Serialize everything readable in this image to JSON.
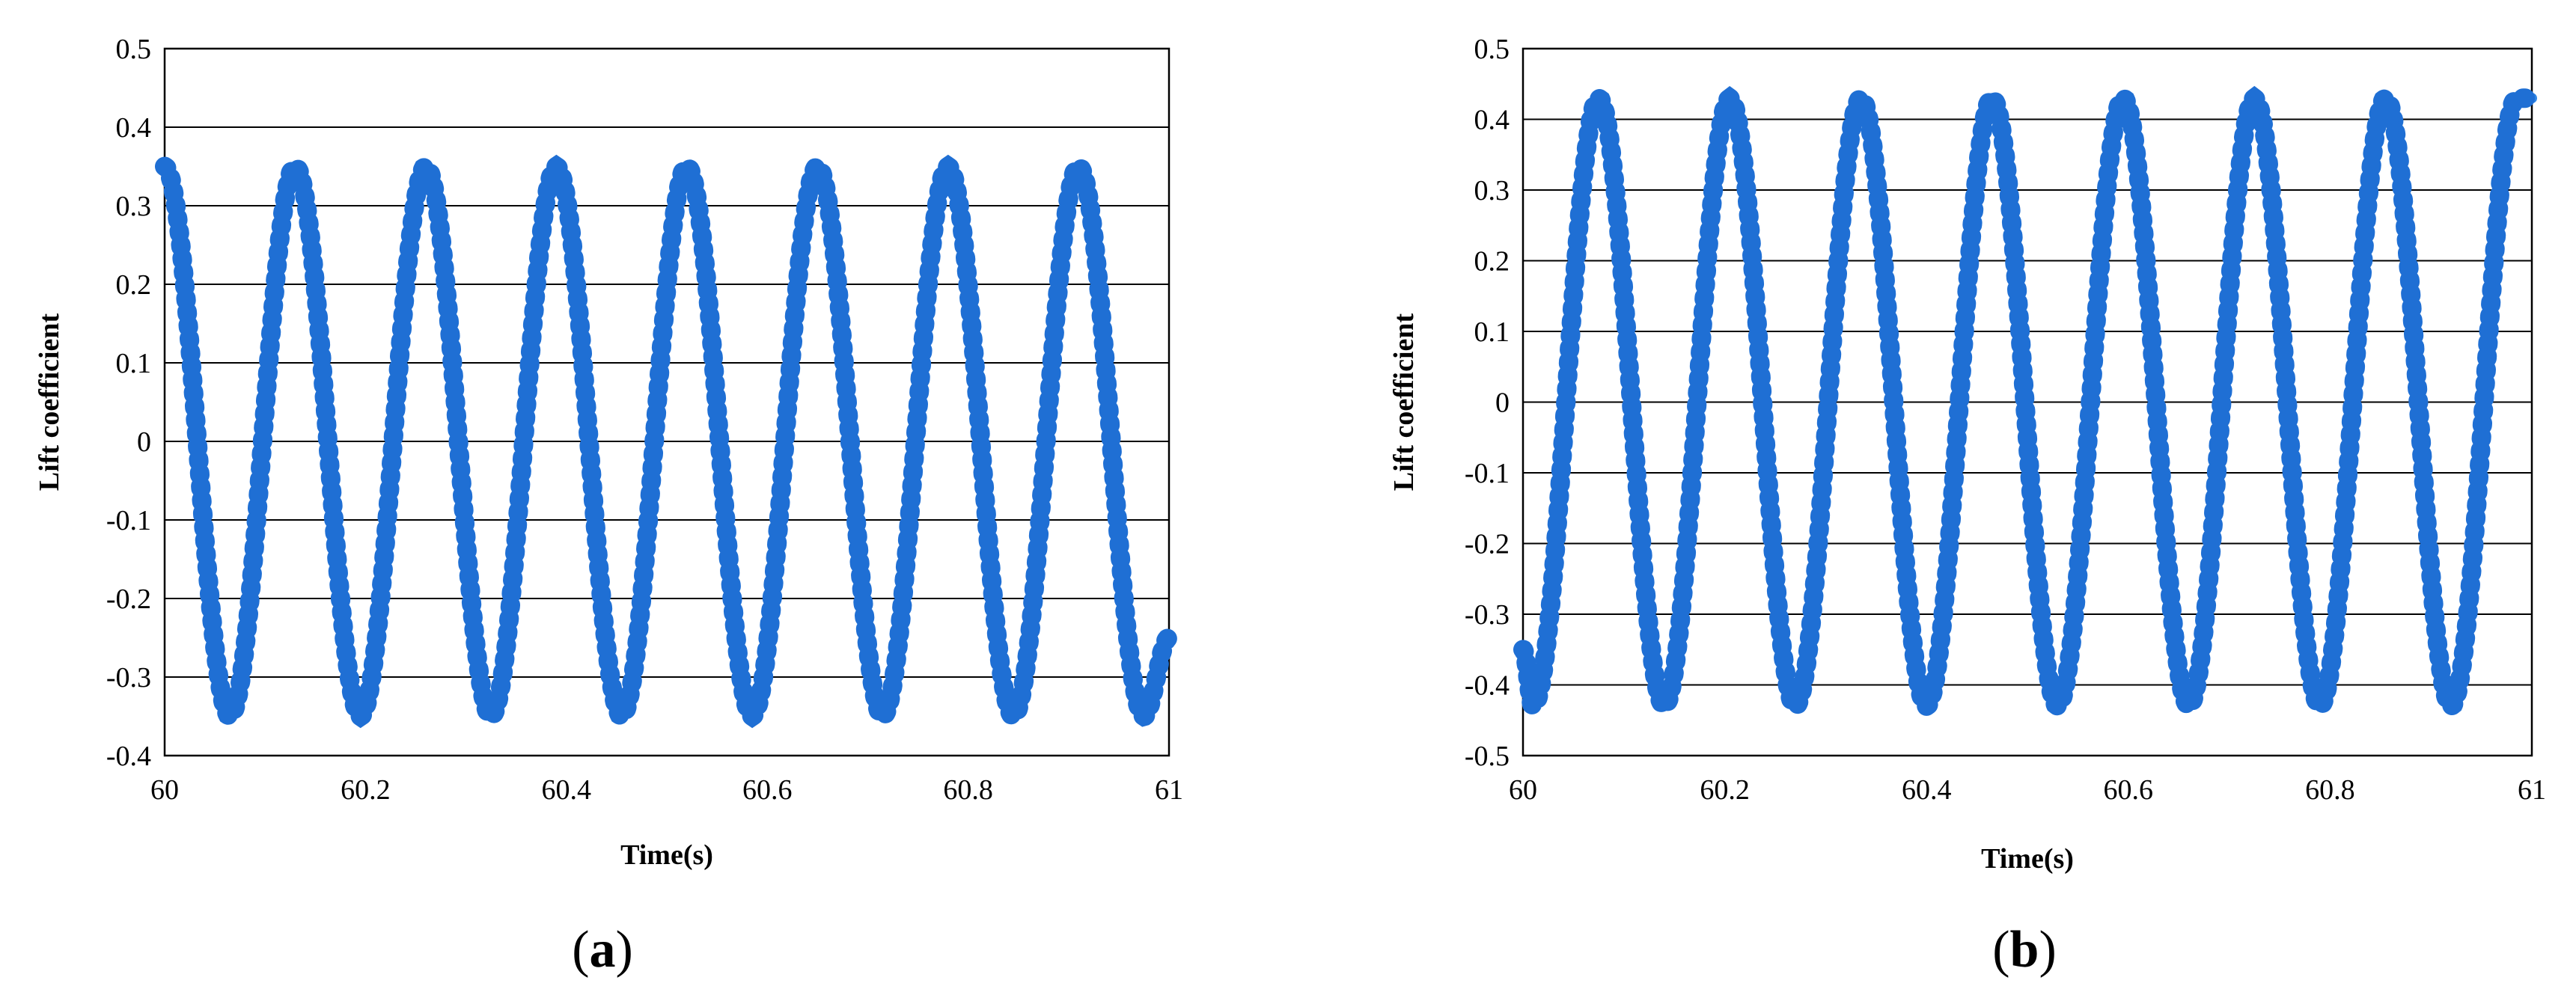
{
  "chart_data": [
    {
      "panel_label": "a",
      "type": "line",
      "xlabel": "Time(s)",
      "ylabel": "Lift  coefficient",
      "xlim": [
        60,
        61
      ],
      "ylim": [
        -0.4,
        0.5
      ],
      "x_ticks": [
        "60",
        "60.2",
        "60.4",
        "60.6",
        "60.8",
        "61"
      ],
      "y_ticks": [
        "0.5",
        "0.4",
        "0.3",
        "0.2",
        "0.1",
        "0",
        "-0.1",
        "-0.2",
        "-0.3",
        "-0.4"
      ],
      "grid": true,
      "color": "#2f86e6",
      "series": [
        {
          "x": [
            60.0,
            60.065,
            60.13,
            60.195,
            60.26,
            60.325,
            60.39,
            60.455,
            60.52,
            60.585,
            60.65,
            60.715,
            60.78,
            60.845,
            60.91,
            60.975,
            61.0
          ],
          "values": [
            0.35,
            -0.35,
            0.35,
            -0.35,
            0.35,
            -0.35,
            0.35,
            -0.35,
            0.35,
            -0.35,
            0.35,
            -0.35,
            0.35,
            -0.35,
            0.35,
            -0.35,
            -0.25
          ]
        }
      ]
    },
    {
      "panel_label": "b",
      "type": "line",
      "xlabel": "Time(s)",
      "ylabel": "Lift  coefficient",
      "xlim": [
        60,
        61
      ],
      "ylim": [
        -0.5,
        0.5
      ],
      "x_ticks": [
        "60",
        "60.2",
        "60.4",
        "60.6",
        "60.8",
        "61"
      ],
      "y_ticks": [
        "0.5",
        "0.4",
        "0.3",
        "0.2",
        "0.1",
        "0",
        "-0.1",
        "-0.2",
        "-0.3",
        "-0.4",
        "-0.5"
      ],
      "grid": true,
      "color": "#2f86e6",
      "series": [
        {
          "x": [
            60.0,
            60.01,
            60.075,
            60.14,
            60.205,
            60.27,
            60.335,
            60.4,
            60.465,
            60.53,
            60.595,
            60.66,
            60.725,
            60.79,
            60.855,
            60.92,
            60.985,
            61.0
          ],
          "values": [
            -0.35,
            -0.43,
            0.43,
            -0.43,
            0.43,
            -0.43,
            0.43,
            -0.43,
            0.43,
            -0.43,
            0.43,
            -0.43,
            0.43,
            -0.43,
            0.43,
            -0.43,
            0.43,
            0.43
          ]
        }
      ]
    }
  ]
}
